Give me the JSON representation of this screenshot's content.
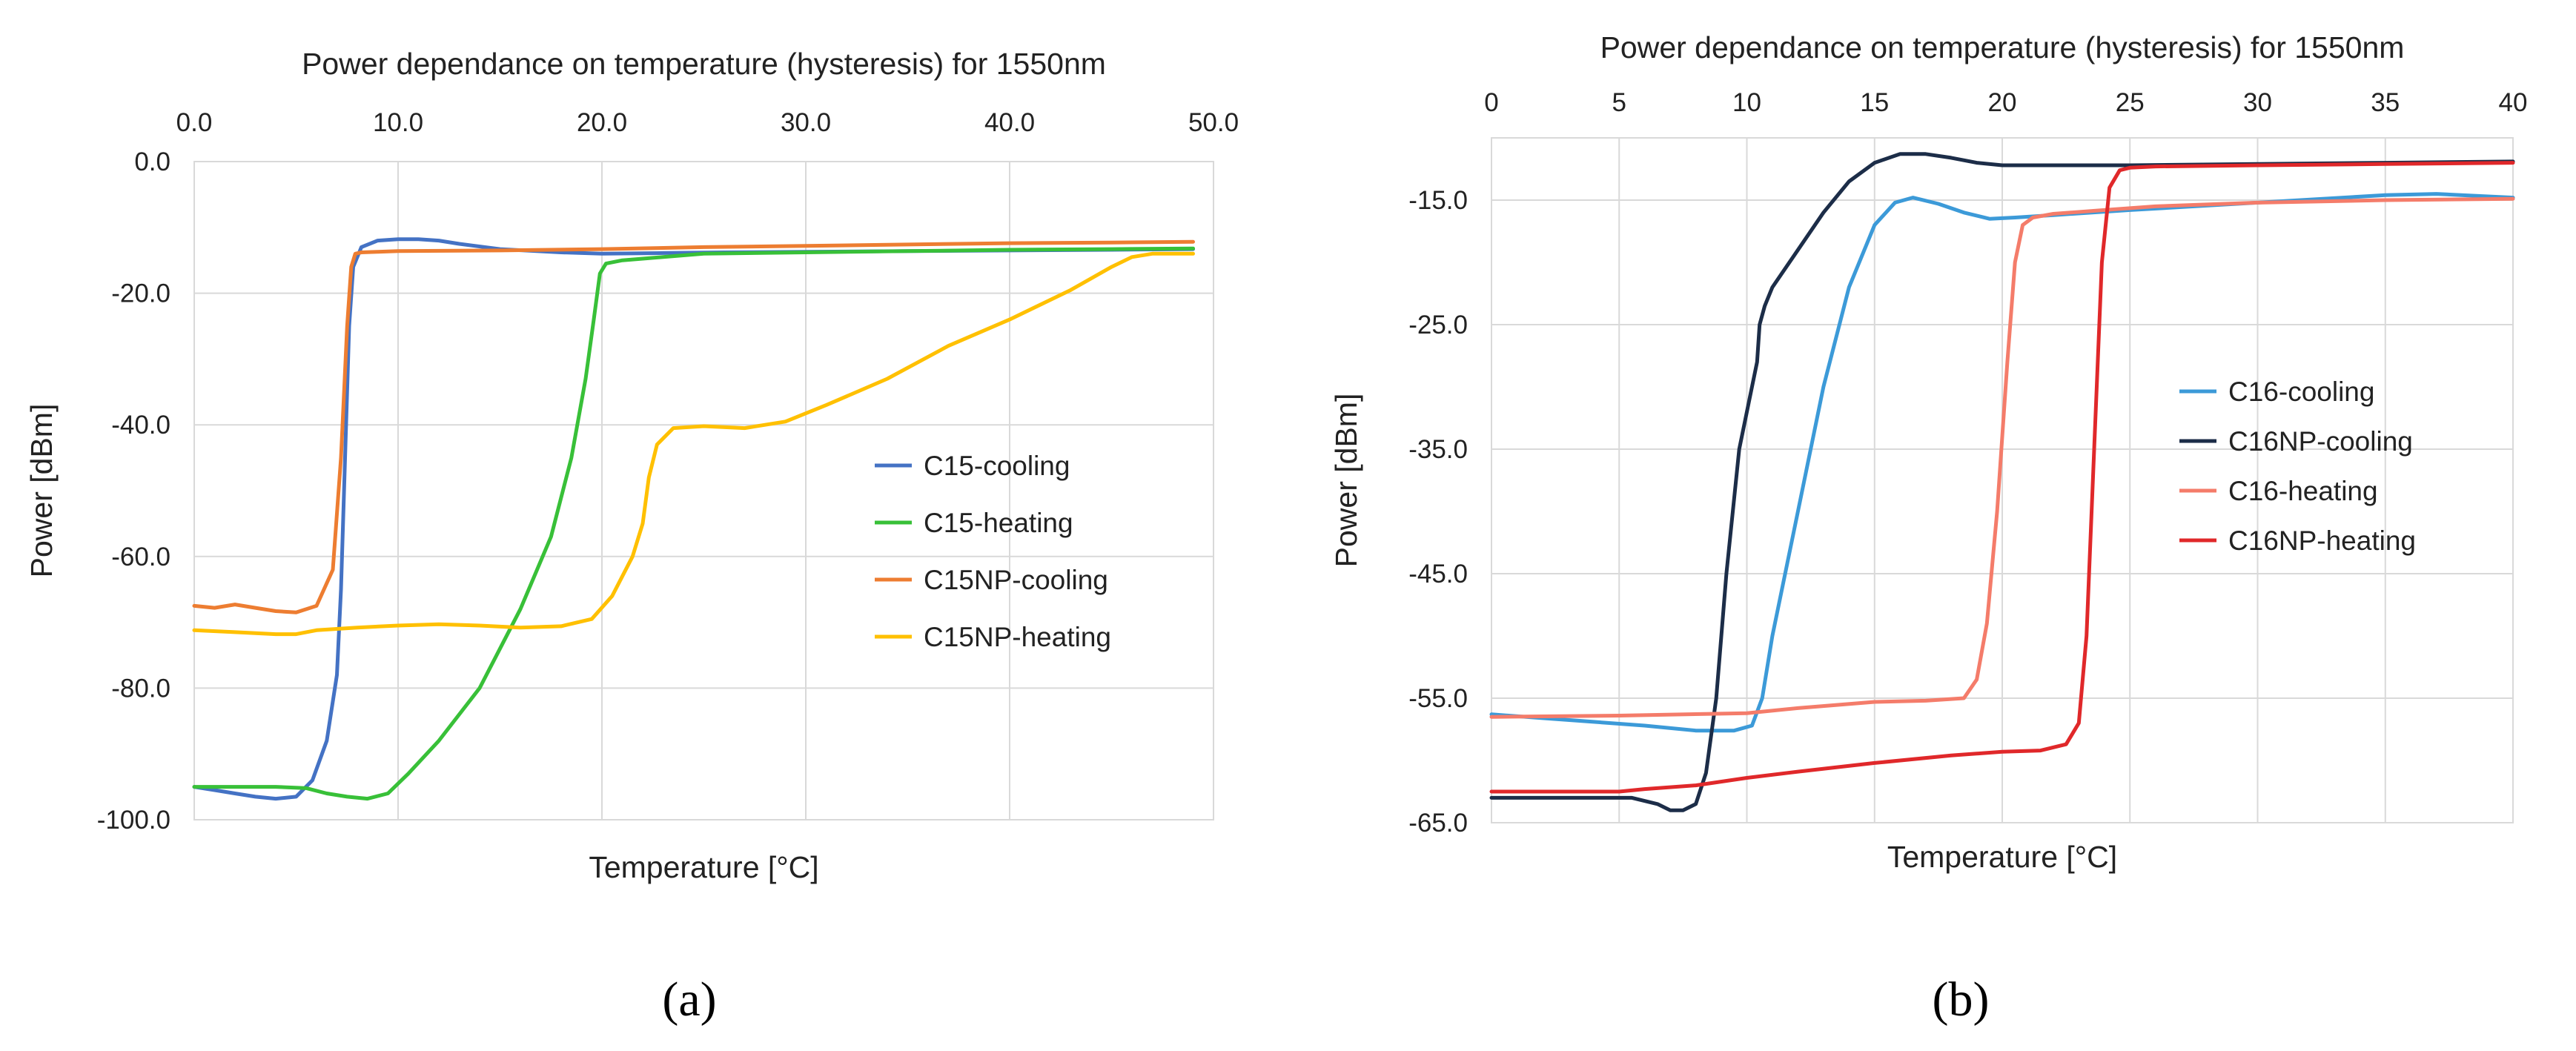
{
  "chart_data": [
    {
      "type": "line",
      "title": "Power dependance on temperature (hysteresis) for 1550nm",
      "xlabel": "Temperature [°C]",
      "ylabel": "Power [dBm]",
      "xlim": [
        0,
        50
      ],
      "ylim": [
        -100,
        0
      ],
      "xticks": [
        0,
        10,
        20,
        30,
        40,
        50
      ],
      "xtick_labels": [
        "0.0",
        "10.0",
        "20.0",
        "30.0",
        "40.0",
        "50.0"
      ],
      "yticks": [
        0,
        -20,
        -40,
        -60,
        -80,
        -100
      ],
      "ytick_labels": [
        "0.0",
        "-20.0",
        "-40.0",
        "-60.0",
        "-80.0",
        "-100.0"
      ],
      "x_axis_position": "top",
      "grid": true,
      "legend": "right",
      "caption": "(a)",
      "series": [
        {
          "name": "C15-cooling",
          "color": "#4472c4",
          "x": [
            0,
            1,
            2,
            3,
            4,
            5,
            5.8,
            6.5,
            7,
            7.2,
            7.4,
            7.6,
            7.8,
            8.2,
            9,
            10,
            11,
            12,
            13,
            15,
            18,
            20,
            23,
            26,
            30,
            35,
            40,
            45,
            49
          ],
          "y": [
            -95,
            -95.5,
            -96,
            -96.5,
            -96.8,
            -96.5,
            -94,
            -88,
            -78,
            -65,
            -45,
            -25,
            -16,
            -13,
            -12,
            -11.8,
            -11.8,
            -12,
            -12.5,
            -13.3,
            -13.8,
            -14,
            -13.9,
            -13.8,
            -13.7,
            -13.6,
            -13.5,
            -13.4,
            -13.3
          ]
        },
        {
          "name": "C15-heating",
          "color": "#38c038",
          "x": [
            0,
            2,
            4,
            5.5,
            6.5,
            7.5,
            8.5,
            9.5,
            10.5,
            12,
            14,
            16,
            17.5,
            18.5,
            19.2,
            19.6,
            19.9,
            20.2,
            21,
            23,
            25,
            30,
            35,
            40,
            45,
            49
          ],
          "y": [
            -95,
            -95,
            -95,
            -95.2,
            -96,
            -96.5,
            -96.8,
            -96,
            -93,
            -88,
            -80,
            -68,
            -57,
            -45,
            -33,
            -24,
            -17,
            -15.5,
            -15,
            -14.5,
            -14,
            -13.8,
            -13.6,
            -13.4,
            -13.3,
            -13.2
          ]
        },
        {
          "name": "C15NP-cooling",
          "color": "#ed7d31",
          "x": [
            0,
            1,
            2,
            3,
            4,
            5,
            6,
            6.8,
            7.2,
            7.5,
            7.7,
            7.9,
            8.2,
            9,
            10,
            15,
            20,
            25,
            30,
            35,
            40,
            45,
            49
          ],
          "y": [
            -67.5,
            -67.8,
            -67.3,
            -67.8,
            -68.3,
            -68.5,
            -67.5,
            -62,
            -45,
            -25,
            -16,
            -14,
            -13.8,
            -13.7,
            -13.6,
            -13.5,
            -13.3,
            -13,
            -12.8,
            -12.6,
            -12.4,
            -12.3,
            -12.2
          ]
        },
        {
          "name": "C15NP-heating",
          "color": "#ffc000",
          "x": [
            0,
            2,
            4,
            5,
            6,
            8,
            10,
            12,
            14,
            16,
            18,
            19.5,
            20.5,
            21.5,
            22,
            22.3,
            22.7,
            23.5,
            25,
            27,
            29,
            31,
            34,
            37,
            40,
            43,
            45,
            46,
            47,
            49
          ],
          "y": [
            -71.2,
            -71.5,
            -71.8,
            -71.8,
            -71.2,
            -70.8,
            -70.5,
            -70.3,
            -70.5,
            -70.8,
            -70.6,
            -69.5,
            -66,
            -60,
            -55,
            -48,
            -43,
            -40.5,
            -40.2,
            -40.5,
            -39.5,
            -37,
            -33,
            -28,
            -24,
            -19.5,
            -16,
            -14.5,
            -14,
            -14
          ]
        }
      ]
    },
    {
      "type": "line",
      "title": "Power dependance on temperature (hysteresis) for 1550nm",
      "xlabel": "Temperature [°C]",
      "ylabel": "Power [dBm]",
      "xlim": [
        0,
        40
      ],
      "ylim": [
        -65,
        -10
      ],
      "xticks": [
        0,
        5,
        10,
        15,
        20,
        25,
        30,
        35,
        40
      ],
      "xtick_labels": [
        "0",
        "5",
        "10",
        "15",
        "20",
        "25",
        "30",
        "35",
        "40"
      ],
      "yticks": [
        -15,
        -25,
        -35,
        -45,
        -55,
        -65
      ],
      "ytick_labels": [
        "-15.0",
        "-25.0",
        "-35.0",
        "-45.0",
        "-55.0",
        "-65.0"
      ],
      "x_axis_position": "top",
      "grid": true,
      "legend": "right",
      "caption": "(b)",
      "series": [
        {
          "name": "C16-cooling",
          "color": "#3c9ad8",
          "x": [
            0,
            2,
            4,
            6,
            8,
            9.5,
            10.2,
            10.6,
            11,
            12,
            13,
            14,
            15,
            15.8,
            16.5,
            17.5,
            18.5,
            19.5,
            20.5,
            22,
            25,
            30,
            35,
            37,
            40
          ],
          "y": [
            -56.3,
            -56.6,
            -56.9,
            -57.2,
            -57.6,
            -57.6,
            -57.2,
            -55,
            -50,
            -40,
            -30,
            -22,
            -17,
            -15.2,
            -14.8,
            -15.3,
            -16,
            -16.5,
            -16.4,
            -16.2,
            -15.8,
            -15.2,
            -14.6,
            -14.5,
            -14.8
          ]
        },
        {
          "name": "C16NP-cooling",
          "color": "#1c2d48",
          "x": [
            0,
            2,
            4,
            5.5,
            6.5,
            7,
            7.5,
            8,
            8.4,
            8.8,
            9.2,
            9.7,
            10.2,
            10.4,
            10.5,
            10.7,
            11,
            12,
            13,
            14,
            15,
            16,
            17,
            18,
            19,
            20,
            25,
            30,
            35,
            40
          ],
          "y": [
            -63,
            -63,
            -63,
            -63,
            -63.5,
            -64,
            -64,
            -63.5,
            -61,
            -55,
            -45,
            -35,
            -30,
            -28,
            -25,
            -23.5,
            -22,
            -19,
            -16,
            -13.5,
            -12,
            -11.3,
            -11.3,
            -11.6,
            -12,
            -12.2,
            -12.2,
            -12.1,
            -12,
            -11.9
          ]
        },
        {
          "name": "C16-heating",
          "color": "#f47c6a",
          "x": [
            0,
            5,
            10,
            12,
            15,
            17,
            18.5,
            19,
            19.4,
            19.8,
            20.2,
            20.5,
            20.8,
            21.2,
            22,
            24,
            26,
            30,
            35,
            40
          ],
          "y": [
            -56.5,
            -56.4,
            -56.2,
            -55.8,
            -55.3,
            -55.2,
            -55,
            -53.5,
            -49,
            -40,
            -28,
            -20,
            -17,
            -16.4,
            -16.1,
            -15.8,
            -15.5,
            -15.2,
            -15,
            -14.9
          ]
        },
        {
          "name": "C16NP-heating",
          "color": "#e0282a",
          "x": [
            0,
            2,
            4,
            5,
            6,
            8,
            10,
            12,
            15,
            18,
            20,
            21.5,
            22.5,
            23,
            23.3,
            23.6,
            23.9,
            24.2,
            24.6,
            25,
            26,
            30,
            35,
            40
          ],
          "y": [
            -62.5,
            -62.5,
            -62.5,
            -62.5,
            -62.3,
            -62,
            -61.4,
            -60.9,
            -60.2,
            -59.6,
            -59.3,
            -59.2,
            -58.7,
            -57,
            -50,
            -35,
            -20,
            -14,
            -12.6,
            -12.4,
            -12.3,
            -12.2,
            -12.1,
            -12
          ]
        }
      ]
    }
  ]
}
